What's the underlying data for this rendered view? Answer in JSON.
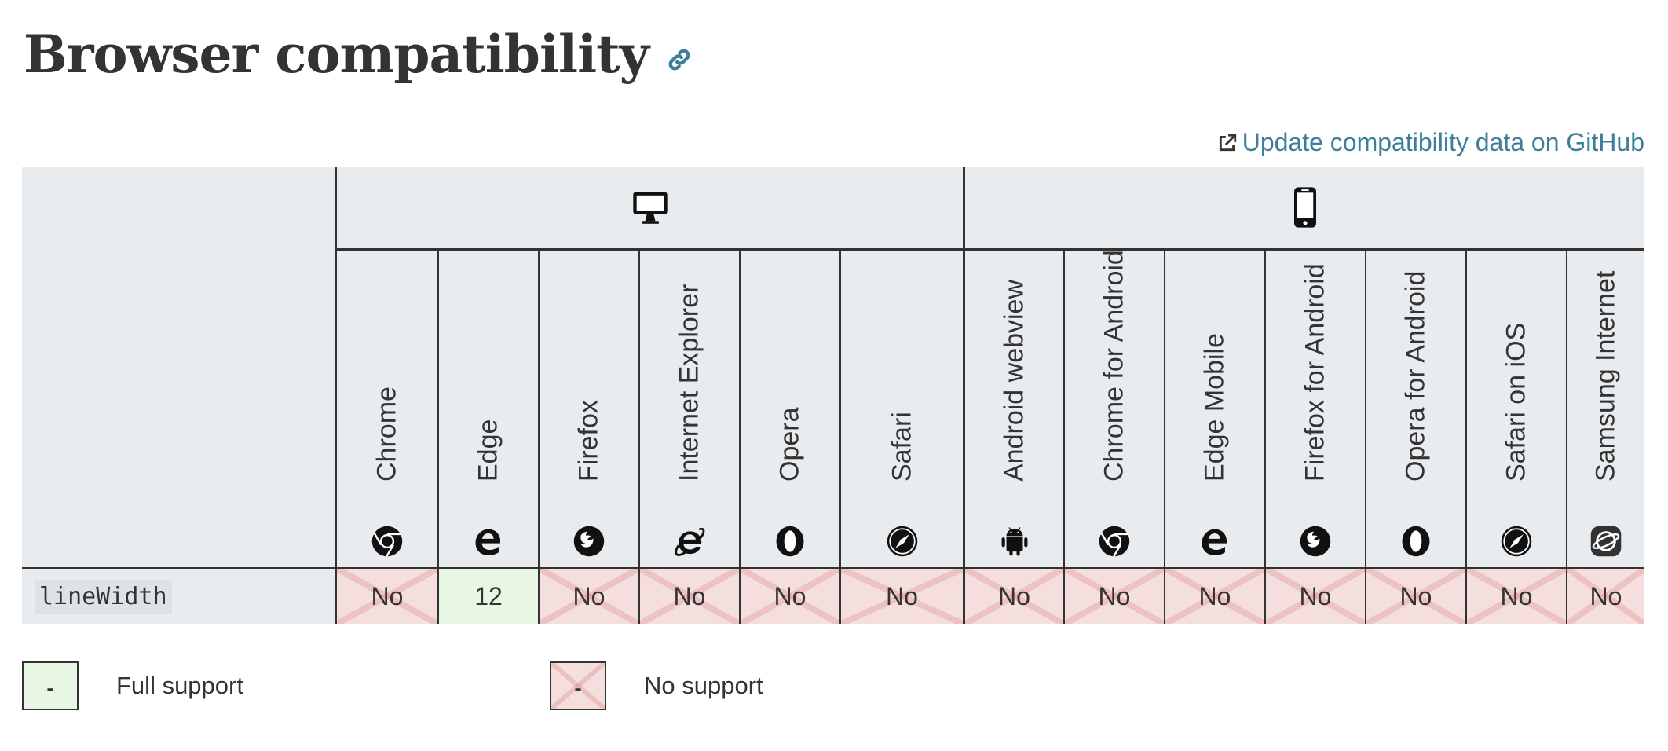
{
  "page": {
    "title": "Browser compatibility",
    "github_link_label": "Update compatibility data on GitHub"
  },
  "platforms": {
    "desktop_icon": "desktop-icon",
    "mobile_icon": "mobile-icon"
  },
  "browsers": [
    {
      "name": "Chrome",
      "icon": "chrome-icon",
      "platform": "desktop"
    },
    {
      "name": "Edge",
      "icon": "edge-icon",
      "platform": "desktop"
    },
    {
      "name": "Firefox",
      "icon": "firefox-icon",
      "platform": "desktop"
    },
    {
      "name": "Internet Explorer",
      "icon": "internet-explorer-icon",
      "platform": "desktop"
    },
    {
      "name": "Opera",
      "icon": "opera-icon",
      "platform": "desktop"
    },
    {
      "name": "Safari",
      "icon": "safari-icon",
      "platform": "desktop"
    },
    {
      "name": "Android webview",
      "icon": "android-icon",
      "platform": "mobile"
    },
    {
      "name": "Chrome for Android",
      "icon": "chrome-icon",
      "platform": "mobile"
    },
    {
      "name": "Edge Mobile",
      "icon": "edge-icon",
      "platform": "mobile"
    },
    {
      "name": "Firefox for Android",
      "icon": "firefox-icon",
      "platform": "mobile"
    },
    {
      "name": "Opera for Android",
      "icon": "opera-icon",
      "platform": "mobile"
    },
    {
      "name": "Safari on iOS",
      "icon": "safari-icon",
      "platform": "mobile"
    },
    {
      "name": "Samsung Internet",
      "icon": "samsung-internet-icon",
      "platform": "mobile"
    }
  ],
  "feature": {
    "name": "lineWidth",
    "support": [
      {
        "value": "No",
        "status": "no"
      },
      {
        "value": "12",
        "status": "yes"
      },
      {
        "value": "No",
        "status": "no"
      },
      {
        "value": "No",
        "status": "no"
      },
      {
        "value": "No",
        "status": "no"
      },
      {
        "value": "No",
        "status": "no"
      },
      {
        "value": "No",
        "status": "no"
      },
      {
        "value": "No",
        "status": "no"
      },
      {
        "value": "No",
        "status": "no"
      },
      {
        "value": "No",
        "status": "no"
      },
      {
        "value": "No",
        "status": "no"
      },
      {
        "value": "No",
        "status": "no"
      },
      {
        "value": "No",
        "status": "no"
      }
    ]
  },
  "legend": {
    "full_support": {
      "symbol": "-",
      "label": "Full support"
    },
    "no_support": {
      "symbol": "-",
      "label": "No support"
    }
  },
  "colors": {
    "link": "#3d7e9a",
    "header_bg": "#e9ecef",
    "yes_bg": "#e8f7e4",
    "no_bg": "#f4dfde"
  }
}
